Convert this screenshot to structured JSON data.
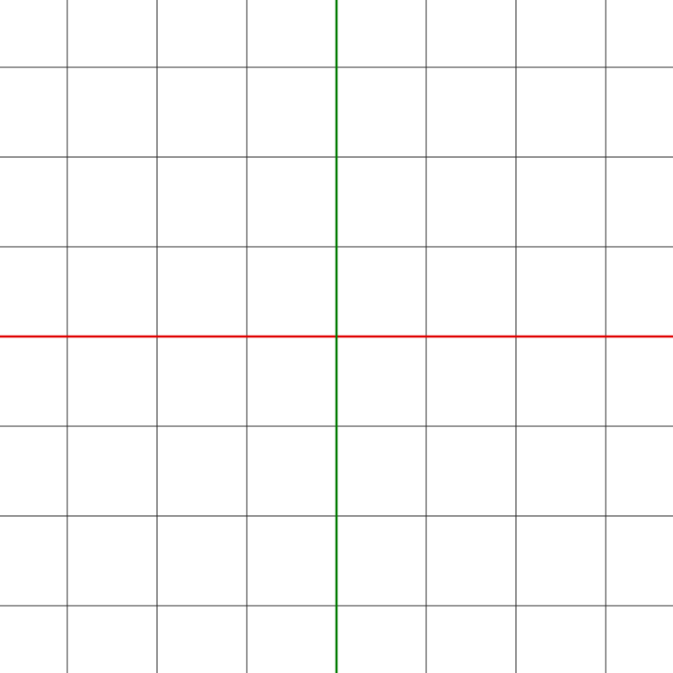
{
  "canvas": {
    "background_color": "#ffffff",
    "grid": {
      "visible": true,
      "line_color": "#2b2b2b",
      "vertical_line_count": 7,
      "horizontal_line_count": 7
    },
    "axes": {
      "x_axis": {
        "color": "#e00000",
        "orientation": "horizontal"
      },
      "y_axis": {
        "color": "#007a00",
        "orientation": "vertical"
      }
    }
  }
}
